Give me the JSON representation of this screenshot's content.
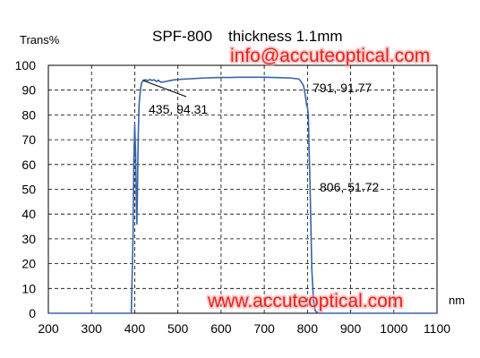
{
  "chart_data": {
    "type": "line",
    "title_main": "SPF-800",
    "title_sub": "thickness 1.1mm",
    "ylabel": "Trans%",
    "xlabel": "nm",
    "xlim": [
      200,
      1100
    ],
    "ylim": [
      0,
      100
    ],
    "x_ticks": [
      "200",
      "300",
      "400",
      "500",
      "600",
      "700",
      "800",
      "900",
      "1000",
      "1100"
    ],
    "y_ticks": [
      "0",
      "10",
      "20",
      "30",
      "40",
      "50",
      "60",
      "70",
      "80",
      "90",
      "100"
    ],
    "grid": true,
    "line_color": "#3a64a8",
    "series": [
      {
        "x": [
          200,
          380,
          392,
          396,
          398,
          400,
          402,
          404,
          405,
          406,
          408,
          410,
          412,
          414,
          416,
          418,
          420,
          425,
          430,
          435,
          440,
          445,
          450,
          455,
          460,
          470,
          480,
          490,
          500,
          520,
          540,
          560,
          580,
          600,
          620,
          640,
          660,
          680,
          700,
          720,
          740,
          760,
          780,
          785,
          791,
          795,
          798,
          800,
          802,
          804,
          806,
          808,
          810,
          814,
          818,
          825,
          900,
          1000,
          1100
        ],
        "y": [
          0,
          0,
          0,
          30,
          62,
          76,
          65,
          42,
          36,
          45,
          70,
          84,
          88,
          91,
          93,
          93.5,
          94,
          94.2,
          93.8,
          94.31,
          93.9,
          94.2,
          93.5,
          94,
          93.2,
          93.4,
          93.8,
          94.1,
          94.3,
          94.5,
          94.7,
          94.9,
          95,
          95.1,
          95.1,
          95.2,
          95.2,
          95.2,
          95.2,
          95.1,
          95,
          94.9,
          94.5,
          93.5,
          91.77,
          88,
          84,
          83,
          80,
          65,
          51.72,
          35,
          18,
          5,
          1,
          0,
          0,
          0,
          0
        ]
      }
    ],
    "annotations": [
      {
        "text": "435, 94.31",
        "x": 435,
        "y": 94.31
      },
      {
        "text": "791, 91.77",
        "x": 791,
        "y": 91.77
      },
      {
        "text": "806, 51.72",
        "x": 806,
        "y": 51.72
      }
    ]
  },
  "watermarks": {
    "email": "info@accuteoptical.com",
    "website": "www.accuteoptical.com"
  }
}
